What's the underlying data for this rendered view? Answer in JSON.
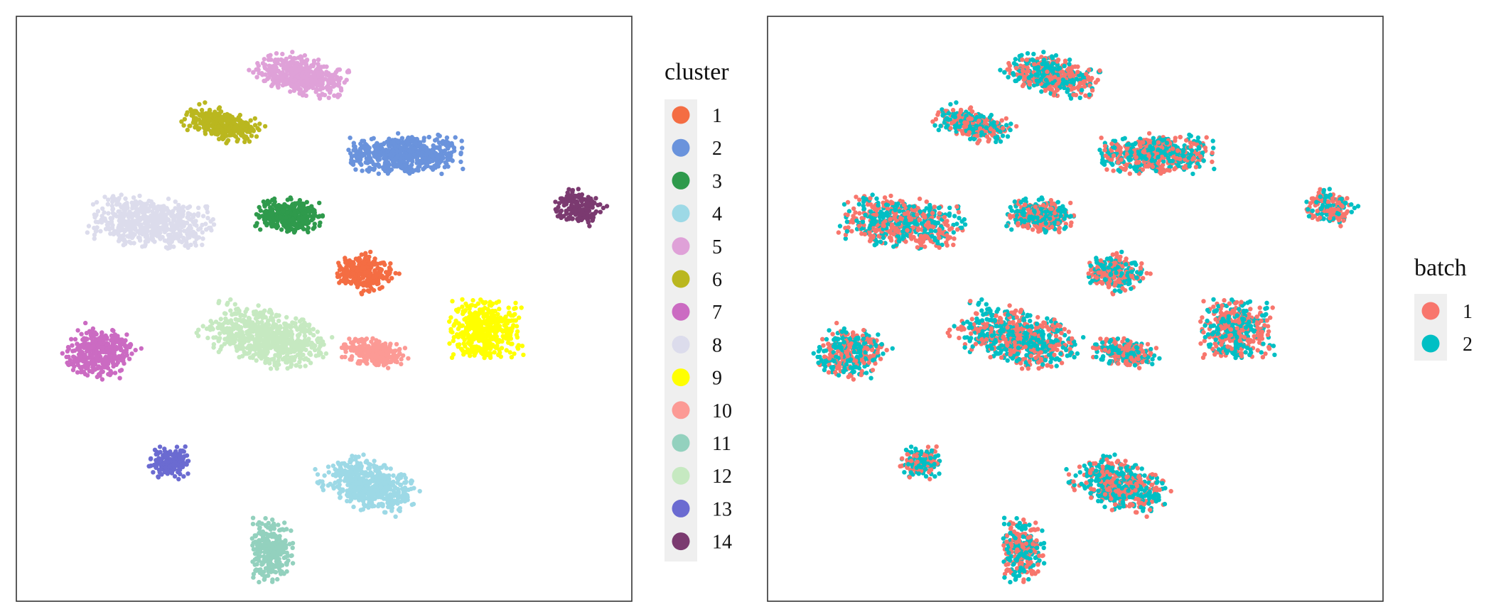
{
  "chart_data": [
    {
      "type": "scatter",
      "title": "",
      "xlabel": "",
      "ylabel": "",
      "grid": false,
      "axes_ticks": false,
      "legend": {
        "title": "cluster",
        "placement": "right"
      },
      "series": [
        {
          "name": "1",
          "color": "#F46D43",
          "center": [
            57,
            43
          ],
          "spread": [
            4.8,
            4.5
          ],
          "angle": -38,
          "n": 260
        },
        {
          "name": "2",
          "color": "#6A93DC",
          "center": [
            64,
            74
          ],
          "spread": [
            9.5,
            4.8
          ],
          "angle": 0,
          "n": 540
        },
        {
          "name": "3",
          "color": "#2F9A4C",
          "center": [
            44,
            58
          ],
          "spread": [
            5.3,
            4.3
          ],
          "angle": -8,
          "n": 320
        },
        {
          "name": "4",
          "color": "#9DD9E6",
          "center": [
            58,
            -13
          ],
          "spread": [
            8.2,
            5.6
          ],
          "angle": -38,
          "n": 520
        },
        {
          "name": "5",
          "color": "#DFA1D8",
          "center": [
            46,
            95
          ],
          "spread": [
            7.6,
            4.6
          ],
          "angle": -22,
          "n": 460
        },
        {
          "name": "6",
          "color": "#BAB71F",
          "center": [
            32,
            82
          ],
          "spread": [
            6.6,
            3.7
          ],
          "angle": -28,
          "n": 300
        },
        {
          "name": "7",
          "color": "#CB6BC2",
          "center": [
            11,
            22
          ],
          "spread": [
            5.6,
            5.9
          ],
          "angle": -25,
          "n": 370
        },
        {
          "name": "8",
          "color": "#DCDCEC",
          "center": [
            20,
            56
          ],
          "spread": [
            10.0,
            6.2
          ],
          "angle": -10,
          "n": 560
        },
        {
          "name": "9",
          "color": "#FFFF00",
          "center": [
            78,
            28
          ],
          "spread": [
            6.2,
            7.3
          ],
          "angle": 0,
          "n": 420
        },
        {
          "name": "10",
          "color": "#FC9A95",
          "center": [
            59,
            22
          ],
          "spread": [
            5.6,
            3.4
          ],
          "angle": -12,
          "n": 260
        },
        {
          "name": "11",
          "color": "#93D1BE",
          "center": [
            41,
            -30
          ],
          "spread": [
            3.3,
            7.8
          ],
          "angle": 0,
          "n": 280
        },
        {
          "name": "12",
          "color": "#C6E9C1",
          "center": [
            40,
            26
          ],
          "spread": [
            10.5,
            6.5
          ],
          "angle": -25,
          "n": 640
        },
        {
          "name": "13",
          "color": "#6B6BD1",
          "center": [
            23,
            -7
          ],
          "spread": [
            3.6,
            4.0
          ],
          "angle": 0,
          "n": 150
        },
        {
          "name": "14",
          "color": "#7B3A70",
          "center": [
            94,
            60
          ],
          "spread": [
            4.0,
            4.2
          ],
          "angle": -30,
          "n": 170
        }
      ],
      "x_range": [
        0,
        100
      ],
      "y_range": [
        -40,
        107
      ]
    },
    {
      "type": "scatter",
      "title": "",
      "xlabel": "",
      "ylabel": "",
      "grid": false,
      "axes_ticks": false,
      "legend": {
        "title": "batch",
        "placement": "right"
      },
      "series": [
        {
          "name": "1",
          "color": "#F8766D"
        },
        {
          "name": "2",
          "color": "#00BFC4"
        }
      ],
      "x_range": [
        0,
        100
      ],
      "y_range": [
        -40,
        107
      ]
    }
  ]
}
